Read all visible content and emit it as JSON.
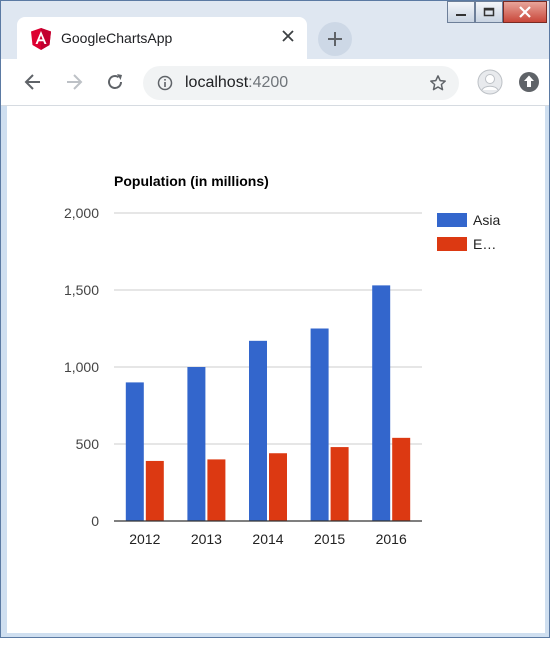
{
  "browser": {
    "tab_title": "GoogleChartsApp",
    "url_host": "localhost",
    "url_port": ":4200"
  },
  "icons": {
    "tab_logo": "angular-logo",
    "tab_close": "close-icon",
    "new_tab": "plus-icon",
    "back": "back-arrow-icon",
    "forward": "forward-arrow-icon",
    "reload": "reload-icon",
    "site_info": "info-icon",
    "bookmark": "star-icon",
    "profile": "profile-avatar-icon",
    "update": "update-icon"
  },
  "colors": {
    "asia": "#3366cc",
    "europe": "#dc3912",
    "angular": "#dd0031"
  },
  "chart_data": {
    "type": "bar",
    "title": "Population (in millions)",
    "categories": [
      "2012",
      "2013",
      "2014",
      "2015",
      "2016"
    ],
    "series": [
      {
        "name": "Asia",
        "values": [
          900,
          1000,
          1170,
          1250,
          1530
        ]
      },
      {
        "name": "E…",
        "values": [
          390,
          400,
          440,
          480,
          540
        ]
      }
    ],
    "ylim": [
      0,
      2000
    ],
    "yticks": [
      0,
      500,
      1000,
      1500,
      2000
    ],
    "ytick_labels": [
      "0",
      "500",
      "1,000",
      "1,500",
      "2,000"
    ],
    "grid": true,
    "legend": "right",
    "xlabel": "",
    "ylabel": ""
  }
}
